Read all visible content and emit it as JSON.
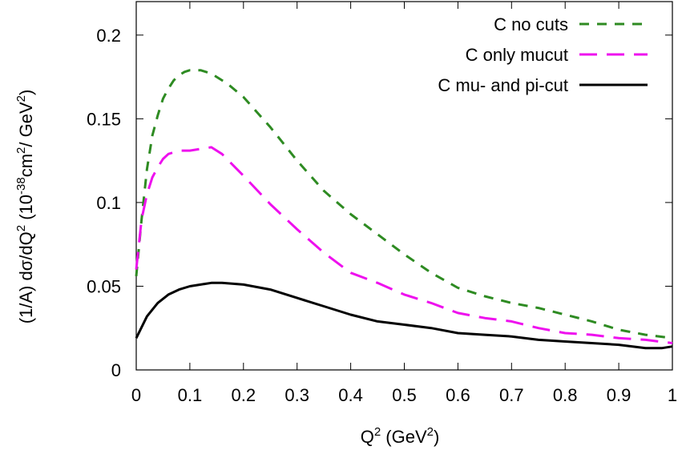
{
  "chart_data": {
    "type": "line",
    "title": "",
    "xlabel": {
      "base": "Q",
      "sup": "2",
      "rest": " (GeV",
      "sup2": "2",
      "close": ")"
    },
    "ylabel": {
      "p1": "(1/A) dσ/dQ",
      "s1": "2",
      "p2": " (10",
      "s2": "-38",
      "p3": "cm",
      "s3": "2",
      "p4": "/ GeV",
      "s4": "2",
      "p5": ")"
    },
    "xlim": [
      0,
      1
    ],
    "ylim": [
      0,
      0.22
    ],
    "xticks": [
      0,
      0.1,
      0.2,
      0.3,
      0.4,
      0.5,
      0.6,
      0.7,
      0.8,
      0.9,
      1
    ],
    "xtick_labels": [
      "0",
      "0.1",
      "0.2",
      "0.3",
      "0.4",
      "0.5",
      "0.6",
      "0.7",
      "0.8",
      "0.9",
      "1"
    ],
    "yticks": [
      0,
      0.05,
      0.1,
      0.15,
      0.2
    ],
    "ytick_labels": [
      "0",
      "0.05",
      "0.1",
      "0.15",
      "0.2"
    ],
    "grid": false,
    "legend_position": "top-right",
    "series": [
      {
        "name": "C no cuts",
        "color": "#2e8b22",
        "dash": "12,10",
        "x": [
          0,
          0.01,
          0.02,
          0.03,
          0.04,
          0.05,
          0.06,
          0.07,
          0.08,
          0.09,
          0.1,
          0.11,
          0.12,
          0.13,
          0.14,
          0.15,
          0.17,
          0.2,
          0.25,
          0.3,
          0.35,
          0.4,
          0.45,
          0.5,
          0.55,
          0.6,
          0.65,
          0.7,
          0.75,
          0.8,
          0.85,
          0.9,
          0.95,
          1.0
        ],
        "y": [
          0.056,
          0.09,
          0.12,
          0.14,
          0.152,
          0.162,
          0.168,
          0.173,
          0.176,
          0.178,
          0.179,
          0.179,
          0.179,
          0.178,
          0.177,
          0.175,
          0.171,
          0.163,
          0.145,
          0.125,
          0.107,
          0.093,
          0.081,
          0.069,
          0.058,
          0.049,
          0.044,
          0.04,
          0.037,
          0.033,
          0.029,
          0.024,
          0.021,
          0.019
        ]
      },
      {
        "name": "C only mucut",
        "color": "#ee10ee",
        "dash": "22,12",
        "x": [
          0,
          0.01,
          0.02,
          0.03,
          0.04,
          0.05,
          0.06,
          0.08,
          0.1,
          0.12,
          0.14,
          0.16,
          0.2,
          0.25,
          0.3,
          0.35,
          0.4,
          0.45,
          0.5,
          0.55,
          0.6,
          0.65,
          0.7,
          0.75,
          0.8,
          0.85,
          0.9,
          0.95,
          1.0
        ],
        "y": [
          0.06,
          0.09,
          0.105,
          0.115,
          0.121,
          0.126,
          0.129,
          0.131,
          0.131,
          0.132,
          0.133,
          0.129,
          0.116,
          0.099,
          0.084,
          0.07,
          0.058,
          0.052,
          0.045,
          0.04,
          0.034,
          0.031,
          0.029,
          0.025,
          0.022,
          0.021,
          0.019,
          0.018,
          0.016
        ]
      },
      {
        "name": "C mu- and pi-cut",
        "color": "#000000",
        "dash": "",
        "x": [
          0,
          0.02,
          0.04,
          0.06,
          0.08,
          0.1,
          0.12,
          0.14,
          0.16,
          0.2,
          0.25,
          0.3,
          0.35,
          0.4,
          0.45,
          0.5,
          0.55,
          0.6,
          0.65,
          0.7,
          0.75,
          0.8,
          0.85,
          0.9,
          0.95,
          0.98,
          1.0
        ],
        "y": [
          0.019,
          0.032,
          0.04,
          0.045,
          0.048,
          0.05,
          0.051,
          0.052,
          0.052,
          0.051,
          0.048,
          0.043,
          0.038,
          0.033,
          0.029,
          0.027,
          0.025,
          0.022,
          0.021,
          0.02,
          0.018,
          0.017,
          0.016,
          0.015,
          0.013,
          0.013,
          0.014
        ]
      }
    ]
  }
}
